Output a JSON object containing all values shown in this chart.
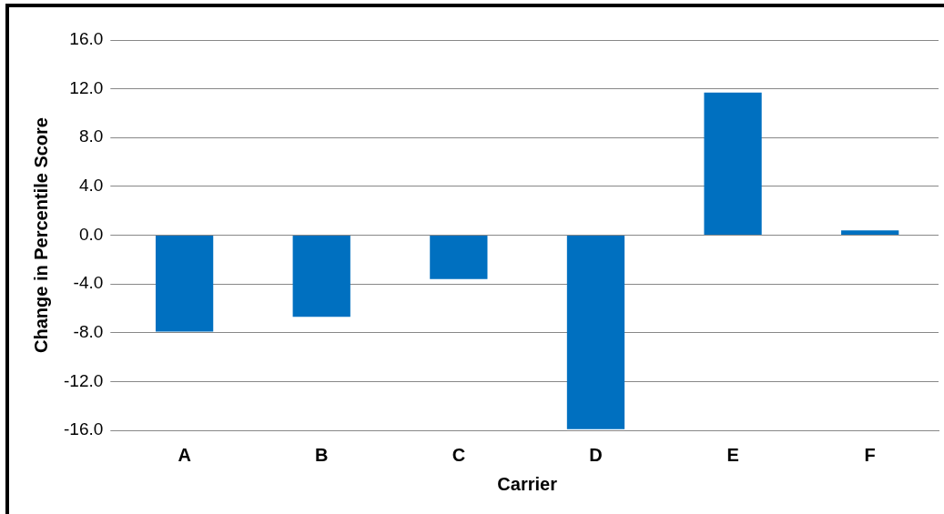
{
  "chart_data": {
    "type": "bar",
    "xlabel": "Carrier",
    "ylabel": "Change in Percentile Score",
    "categories": [
      "A",
      "B",
      "C",
      "D",
      "E",
      "F"
    ],
    "values": [
      -7.9,
      -6.7,
      -3.6,
      -15.9,
      11.7,
      0.4
    ],
    "color": "#0070c0",
    "ylim": [
      -16,
      16
    ],
    "yticks": [
      {
        "value": -16,
        "label": "-16.0"
      },
      {
        "value": -12,
        "label": "-12.0"
      },
      {
        "value": -8,
        "label": "-8.0"
      },
      {
        "value": -4,
        "label": "-4.0"
      },
      {
        "value": 0,
        "label": "0.0"
      },
      {
        "value": 4,
        "label": "4.0"
      },
      {
        "value": 8,
        "label": "8.0"
      },
      {
        "value": 12,
        "label": "12.0"
      },
      {
        "value": 16,
        "label": "16.0"
      }
    ],
    "grid": "y",
    "legend": false
  }
}
